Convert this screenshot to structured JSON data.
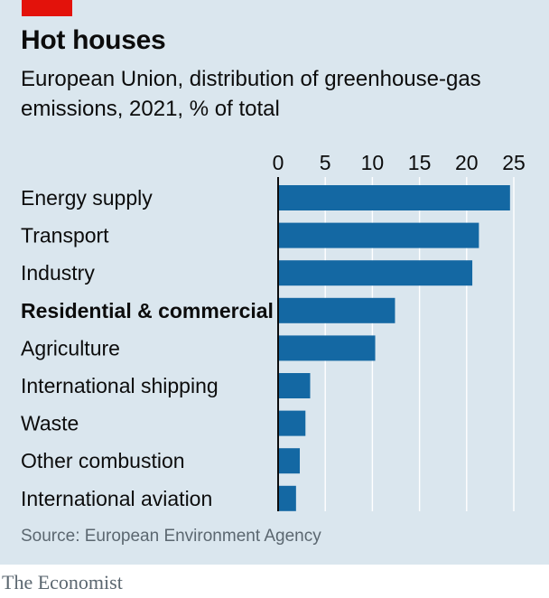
{
  "header": {
    "title": "Hot houses",
    "subtitle": "European Union, distribution of greenhouse-gas emissions, 2021, % of total"
  },
  "source": "Source: European Environment Agency",
  "brand": "The Economist",
  "colors": {
    "background": "#dae6ee",
    "bar": "#1468a3",
    "accent_tag": "#e3120b",
    "axis": "#0c0c0c",
    "gridline": "#ffffff"
  },
  "chart_data": {
    "type": "bar",
    "orientation": "horizontal",
    "categories": [
      "Energy supply",
      "Transport",
      "Industry",
      "Residential & commercial",
      "Agriculture",
      "International shipping",
      "Waste",
      "Other combustion",
      "International aviation"
    ],
    "values": [
      24.6,
      21.3,
      20.6,
      12.4,
      10.3,
      3.4,
      2.9,
      2.3,
      1.9
    ],
    "highlighted_category": "Residential & commercial",
    "xticks": [
      0,
      5,
      10,
      15,
      20,
      25
    ],
    "xlim": [
      0,
      25
    ],
    "tick_position": "top",
    "grid": true
  }
}
